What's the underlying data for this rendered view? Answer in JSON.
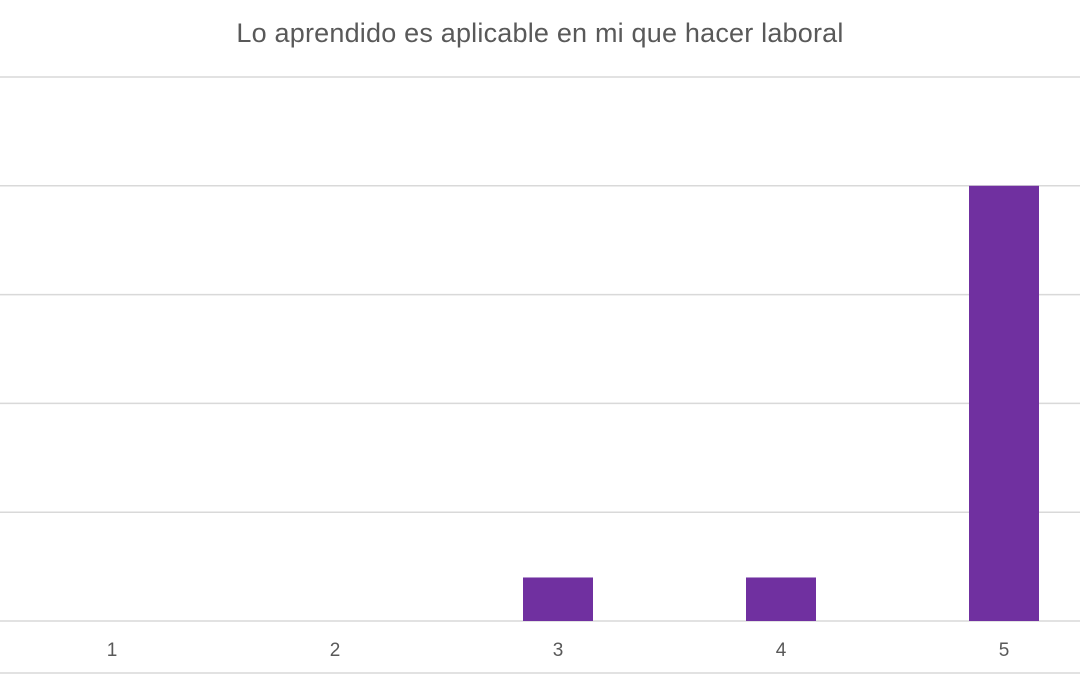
{
  "chart_data": {
    "type": "bar",
    "title": "Lo aprendido es aplicable en mi que hacer laboral",
    "categories": [
      "1",
      "2",
      "3",
      "4",
      "5"
    ],
    "values": [
      0,
      0,
      1,
      1,
      10
    ],
    "xlabel": "",
    "ylabel": "",
    "ylim": [
      0,
      12.5
    ],
    "ytick_step": 2.5,
    "grid": true,
    "legend": "none",
    "bar_color": "#7030a0"
  }
}
